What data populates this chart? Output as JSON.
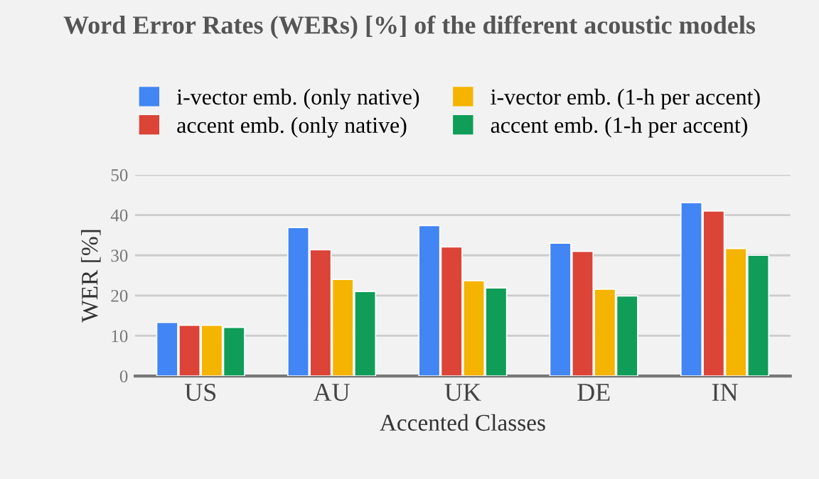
{
  "chart_data": {
    "type": "bar",
    "title": "Word Error Rates (WERs) [%] of the different acoustic models",
    "xlabel": "Accented Classes",
    "ylabel": "WER [%]",
    "categories": [
      "US",
      "AU",
      "UK",
      "DE",
      "IN"
    ],
    "series": [
      {
        "name": "i-vector emb. (only native)",
        "color": "#4285f4",
        "values": [
          13.3,
          36.9,
          37.4,
          33.0,
          43.1
        ]
      },
      {
        "name": "accent emb. (only native)",
        "color": "#db4437",
        "values": [
          12.6,
          31.4,
          32.1,
          31.0,
          41.0
        ]
      },
      {
        "name": "i-vector emb. (1-h per accent)",
        "color": "#f4b400",
        "values": [
          12.6,
          24.0,
          23.7,
          21.6,
          31.7
        ]
      },
      {
        "name": "accent emb. (1-h per accent)",
        "color": "#0f9d58",
        "values": [
          12.1,
          21.0,
          21.9,
          19.9,
          30.0
        ]
      }
    ],
    "ylim": [
      0,
      50
    ],
    "yticks": [
      0,
      10,
      20,
      30,
      40,
      50
    ],
    "grid": "y",
    "legend": "top"
  }
}
